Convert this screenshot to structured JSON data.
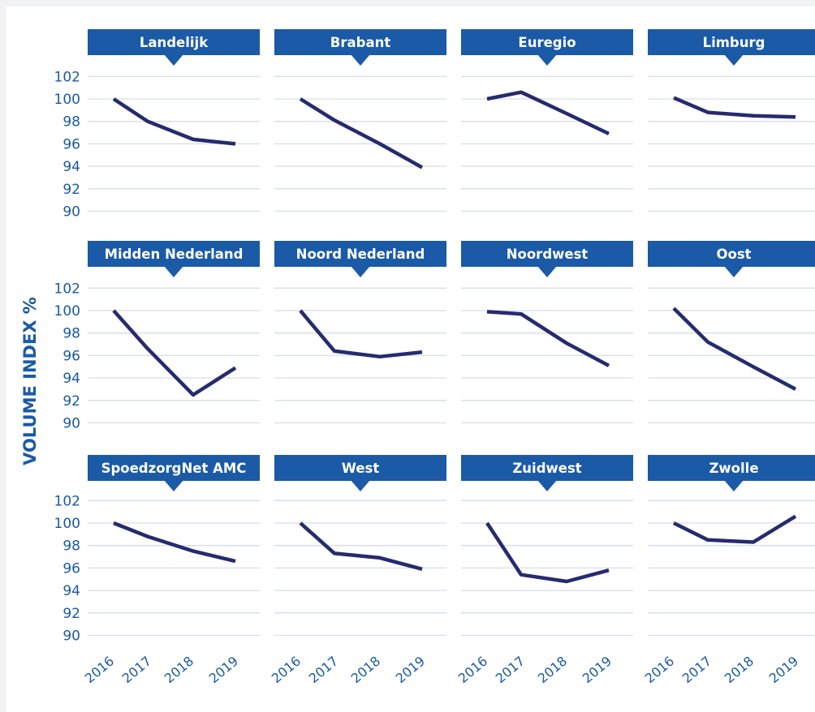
{
  "y_axis_label": "VOLUME INDEX  %",
  "colors": {
    "header_bg": "#1a5aa6",
    "header_text": "#ffffff",
    "line": "#262a6f",
    "grid": "#d5deee",
    "tick_text": "#1a5aa6",
    "background": "#ffffff",
    "page_tint": "#f1f2f4"
  },
  "chart_data": [
    {
      "type": "line",
      "title": "Landelijk",
      "x": [
        "2016",
        "2017",
        "2018",
        "2019"
      ],
      "y": [
        100.0,
        98.0,
        96.4,
        96.0
      ],
      "ylim": [
        90,
        102
      ],
      "yticks": [
        102,
        100,
        98,
        96,
        94,
        92,
        90
      ]
    },
    {
      "type": "line",
      "title": "Brabant",
      "x": [
        "2016",
        "2017",
        "2018",
        "2019"
      ],
      "y": [
        100.0,
        98.1,
        96.0,
        93.9
      ],
      "ylim": [
        90,
        102
      ],
      "yticks": [
        102,
        100,
        98,
        96,
        94,
        92,
        90
      ]
    },
    {
      "type": "line",
      "title": "Euregio",
      "x": [
        "2016",
        "2017",
        "2018",
        "2019"
      ],
      "y": [
        100.0,
        100.6,
        98.7,
        96.9
      ],
      "ylim": [
        90,
        102
      ],
      "yticks": [
        102,
        100,
        98,
        96,
        94,
        92,
        90
      ]
    },
    {
      "type": "line",
      "title": "Limburg",
      "x": [
        "2016",
        "2017",
        "2018",
        "2019"
      ],
      "y": [
        100.1,
        98.8,
        98.5,
        98.4
      ],
      "ylim": [
        90,
        102
      ],
      "yticks": [
        102,
        100,
        98,
        96,
        94,
        92,
        90
      ]
    },
    {
      "type": "line",
      "title": "Midden Nederland",
      "x": [
        "2016",
        "2017",
        "2018",
        "2019"
      ],
      "y": [
        100.0,
        96.6,
        92.5,
        94.9
      ],
      "ylim": [
        90,
        102
      ],
      "yticks": [
        102,
        100,
        98,
        96,
        94,
        92,
        90
      ]
    },
    {
      "type": "line",
      "title": "Noord Nederland",
      "x": [
        "2016",
        "2017",
        "2018",
        "2019"
      ],
      "y": [
        100.0,
        96.4,
        95.9,
        96.3
      ],
      "ylim": [
        90,
        102
      ],
      "yticks": [
        102,
        100,
        98,
        96,
        94,
        92,
        90
      ]
    },
    {
      "type": "line",
      "title": "Noordwest",
      "x": [
        "2016",
        "2017",
        "2018",
        "2019"
      ],
      "y": [
        99.9,
        99.7,
        97.1,
        95.1
      ],
      "ylim": [
        90,
        102
      ],
      "yticks": [
        102,
        100,
        98,
        96,
        94,
        92,
        90
      ]
    },
    {
      "type": "line",
      "title": "Oost",
      "x": [
        "2016",
        "2017",
        "2018",
        "2019"
      ],
      "y": [
        100.2,
        97.2,
        95.0,
        93.0
      ],
      "ylim": [
        90,
        102
      ],
      "yticks": [
        102,
        100,
        98,
        96,
        94,
        92,
        90
      ]
    },
    {
      "type": "line",
      "title": "SpoedzorgNet AMC",
      "x": [
        "2016",
        "2017",
        "2018",
        "2019"
      ],
      "y": [
        100.0,
        98.8,
        97.5,
        96.6
      ],
      "ylim": [
        90,
        102
      ],
      "yticks": [
        102,
        100,
        98,
        96,
        94,
        92,
        90
      ]
    },
    {
      "type": "line",
      "title": "West",
      "x": [
        "2016",
        "2017",
        "2018",
        "2019"
      ],
      "y": [
        100.0,
        97.3,
        96.9,
        95.9
      ],
      "ylim": [
        90,
        102
      ],
      "yticks": [
        102,
        100,
        98,
        96,
        94,
        92,
        90
      ]
    },
    {
      "type": "line",
      "title": "Zuidwest",
      "x": [
        "2016",
        "2017",
        "2018",
        "2019"
      ],
      "y": [
        100.0,
        95.4,
        94.8,
        95.8
      ],
      "ylim": [
        90,
        102
      ],
      "yticks": [
        102,
        100,
        98,
        96,
        94,
        92,
        90
      ]
    },
    {
      "type": "line",
      "title": "Zwolle",
      "x": [
        "2016",
        "2017",
        "2018",
        "2019"
      ],
      "y": [
        100.0,
        98.5,
        98.3,
        100.6
      ],
      "ylim": [
        90,
        102
      ],
      "yticks": [
        102,
        100,
        98,
        96,
        94,
        92,
        90
      ]
    }
  ]
}
